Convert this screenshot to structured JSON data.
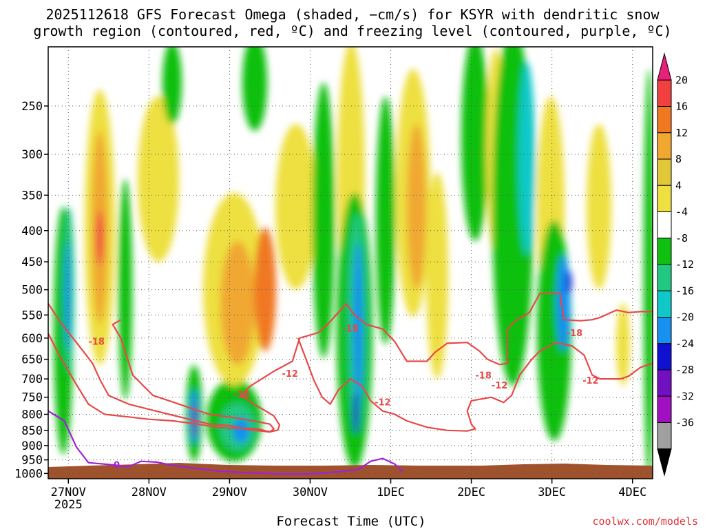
{
  "chart_data": {
    "type": "heatmap",
    "title_line1": "2025112618 GFS Forecast Omega (shaded, −cm/s) for KSYR with dendritic snow",
    "title_line2": "growth region (contoured, red, ºC) and freezing level (contoured, purple, ºC)",
    "xlabel": "Forecast Time (UTC)",
    "credit": "coolwx.com/models",
    "x_ticks": [
      {
        "label": "27NOV",
        "day": 0
      },
      {
        "label": "28NOV",
        "day": 1
      },
      {
        "label": "29NOV",
        "day": 2
      },
      {
        "label": "30NOV",
        "day": 3
      },
      {
        "label": "1DEC",
        "day": 4
      },
      {
        "label": "2DEC",
        "day": 5
      },
      {
        "label": "3DEC",
        "day": 6
      },
      {
        "label": "4DEC",
        "day": 7
      }
    ],
    "x_year": "2025",
    "x_range_days": [
      -0.25,
      7.25
    ],
    "y_ticks": [
      250,
      300,
      350,
      400,
      450,
      500,
      550,
      600,
      650,
      700,
      750,
      800,
      850,
      900,
      950,
      1000
    ],
    "y_range_hpa": [
      200,
      1020
    ],
    "colorbar": {
      "levels": [
        20,
        16,
        12,
        8,
        4,
        -4,
        -8,
        -12,
        -16,
        -20,
        -24,
        -28,
        -32,
        -36
      ],
      "colors": [
        "#e8207a",
        "#f04040",
        "#f07820",
        "#f0a830",
        "#e0c838",
        "#eee040",
        "#ffffff",
        "#10c010",
        "#20c880",
        "#10c8c8",
        "#1890f0",
        "#1010d0",
        "#7010c0",
        "#a010c0",
        "#a0a0a0",
        "#000000"
      ]
    },
    "contour_labels": [
      {
        "text": "-18",
        "day": 0.35,
        "p": 607,
        "series": "dgz"
      },
      {
        "text": "-18",
        "day": 2.15,
        "p": 742,
        "series": "dgz"
      },
      {
        "text": "-12",
        "day": 2.75,
        "p": 685,
        "series": "dgz"
      },
      {
        "text": "-18",
        "day": 3.5,
        "p": 578,
        "series": "dgz"
      },
      {
        "text": "-12",
        "day": 3.9,
        "p": 763,
        "series": "dgz"
      },
      {
        "text": "-18",
        "day": 5.15,
        "p": 690,
        "series": "dgz"
      },
      {
        "text": "-12",
        "day": 5.35,
        "p": 716,
        "series": "dgz"
      },
      {
        "text": "-18",
        "day": 6.28,
        "p": 588,
        "series": "dgz"
      },
      {
        "text": "-12",
        "day": 6.48,
        "p": 703,
        "series": "dgz"
      },
      {
        "text": "0",
        "day": 0.6,
        "p": 967,
        "series": "freezing"
      }
    ],
    "series": [
      {
        "name": "dgz_-12_upper",
        "color": "#e84848",
        "points": [
          [
            -0.25,
            527
          ],
          [
            -0.1,
            565
          ],
          [
            0.1,
            610
          ],
          [
            0.3,
            660
          ],
          [
            0.4,
            705
          ],
          [
            0.5,
            745
          ],
          [
            0.75,
            770
          ],
          [
            1.0,
            785
          ],
          [
            1.25,
            800
          ],
          [
            1.5,
            815
          ],
          [
            1.75,
            830
          ],
          [
            2.0,
            835
          ],
          [
            2.25,
            848
          ],
          [
            2.5,
            855
          ],
          [
            2.6,
            849
          ],
          [
            2.62,
            833
          ],
          [
            2.55,
            805
          ],
          [
            2.45,
            790
          ],
          [
            2.3,
            770
          ],
          [
            2.15,
            745
          ],
          [
            2.25,
            720
          ],
          [
            2.55,
            680
          ],
          [
            2.78,
            655
          ],
          [
            2.87,
            600
          ],
          [
            3.1,
            588
          ],
          [
            3.2,
            573
          ],
          [
            3.35,
            545
          ],
          [
            3.45,
            527
          ],
          [
            3.55,
            550
          ],
          [
            3.7,
            570
          ],
          [
            3.9,
            580
          ],
          [
            4.05,
            608
          ],
          [
            4.2,
            655
          ],
          [
            4.45,
            655
          ],
          [
            4.55,
            633
          ],
          [
            4.7,
            612
          ],
          [
            4.95,
            610
          ],
          [
            5.1,
            630
          ],
          [
            5.2,
            650
          ],
          [
            5.35,
            663
          ],
          [
            5.45,
            660
          ],
          [
            5.45,
            580
          ],
          [
            5.55,
            562
          ],
          [
            5.72,
            545
          ],
          [
            5.85,
            507
          ],
          [
            6.1,
            507
          ],
          [
            6.15,
            560
          ],
          [
            6.35,
            562
          ],
          [
            6.5,
            560
          ],
          [
            6.6,
            555
          ],
          [
            6.8,
            540
          ],
          [
            6.95,
            545
          ],
          [
            7.1,
            543
          ],
          [
            7.25,
            543
          ]
        ]
      },
      {
        "name": "dgz_-18_lower",
        "color": "#e84848",
        "points": [
          [
            -0.25,
            590
          ],
          [
            -0.1,
            645
          ],
          [
            0.1,
            715
          ],
          [
            0.25,
            770
          ],
          [
            0.45,
            800
          ],
          [
            0.75,
            808
          ],
          [
            1.0,
            815
          ],
          [
            1.3,
            820
          ],
          [
            1.6,
            830
          ],
          [
            1.85,
            840
          ],
          [
            2.05,
            843
          ],
          [
            2.2,
            843
          ],
          [
            2.35,
            845
          ],
          [
            2.5,
            855
          ],
          [
            2.55,
            845
          ],
          [
            2.5,
            830
          ],
          [
            2.25,
            818
          ],
          [
            2.05,
            810
          ],
          [
            1.75,
            800
          ],
          [
            1.5,
            780
          ],
          [
            1.25,
            760
          ],
          [
            1.05,
            745
          ],
          [
            0.8,
            690
          ],
          [
            0.65,
            600
          ],
          [
            0.55,
            570
          ],
          [
            0.65,
            560
          ]
        ]
      },
      {
        "name": "dgz_mid",
        "color": "#e84848",
        "points": [
          [
            2.85,
            600
          ],
          [
            2.95,
            650
          ],
          [
            3.05,
            705
          ],
          [
            3.15,
            750
          ],
          [
            3.25,
            770
          ],
          [
            3.35,
            730
          ],
          [
            3.5,
            700
          ],
          [
            3.65,
            720
          ],
          [
            3.75,
            760
          ],
          [
            3.9,
            790
          ],
          [
            4.05,
            800
          ],
          [
            4.2,
            820
          ],
          [
            4.45,
            840
          ],
          [
            4.7,
            850
          ],
          [
            4.95,
            852
          ],
          [
            5.05,
            845
          ],
          [
            5.0,
            830
          ],
          [
            4.95,
            790
          ],
          [
            5.0,
            760
          ],
          [
            5.25,
            750
          ],
          [
            5.4,
            765
          ],
          [
            5.5,
            745
          ],
          [
            5.6,
            690
          ],
          [
            5.75,
            650
          ],
          [
            5.85,
            630
          ],
          [
            6.05,
            610
          ],
          [
            6.25,
            618
          ],
          [
            6.4,
            640
          ],
          [
            6.5,
            690
          ],
          [
            6.6,
            700
          ],
          [
            6.85,
            700
          ],
          [
            6.95,
            693
          ],
          [
            7.1,
            670
          ],
          [
            7.25,
            660
          ]
        ]
      },
      {
        "name": "freezing_0C",
        "color": "#a020d8",
        "points": [
          [
            -0.25,
            790
          ],
          [
            -0.05,
            820
          ],
          [
            0.1,
            905
          ],
          [
            0.25,
            960
          ],
          [
            0.55,
            968
          ],
          [
            0.75,
            975
          ],
          [
            0.9,
            955
          ],
          [
            1.1,
            958
          ],
          [
            1.3,
            970
          ],
          [
            1.5,
            978
          ],
          [
            1.7,
            985
          ],
          [
            1.9,
            992
          ],
          [
            2.3,
            998
          ],
          [
            2.6,
            1002
          ],
          [
            3.0,
            1002
          ],
          [
            3.3,
            995
          ],
          [
            3.6,
            985
          ],
          [
            3.75,
            955
          ],
          [
            3.9,
            945
          ],
          [
            4.05,
            965
          ],
          [
            4.15,
            995
          ]
        ]
      }
    ]
  }
}
